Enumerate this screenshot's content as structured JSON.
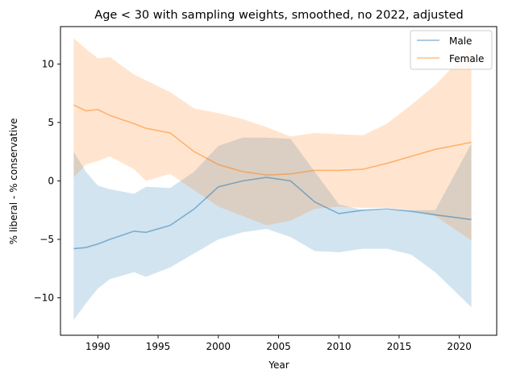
{
  "chart_data": {
    "type": "line",
    "title": "Age < 30 with sampling weights, smoothed, no 2022, adjusted",
    "xlabel": "Year",
    "ylabel": "% liberal - % conservative",
    "xlim": [
      1986.9,
      2023.1
    ],
    "ylim": [
      -13.2,
      13.2
    ],
    "x_ticks": [
      1990,
      1995,
      2000,
      2005,
      2010,
      2015,
      2020
    ],
    "y_ticks": [
      -10,
      -5,
      0,
      5,
      10
    ],
    "grid": false,
    "legend_position": "top-right",
    "x": [
      1988,
      1989,
      1990,
      1991,
      1993,
      1994,
      1996,
      1998,
      2000,
      2002,
      2004,
      2006,
      2008,
      2010,
      2012,
      2014,
      2016,
      2018,
      2021
    ],
    "series": [
      {
        "name": "Male",
        "color": "#1f77b4",
        "values": [
          -5.8,
          -5.7,
          -5.4,
          -5.0,
          -4.3,
          -4.4,
          -3.8,
          -2.4,
          -0.5,
          0.0,
          0.3,
          0.0,
          -1.8,
          -2.8,
          -2.5,
          -2.4,
          -2.6,
          -2.9,
          -3.3
        ],
        "lower": [
          -11.9,
          -10.5,
          -9.2,
          -8.4,
          -7.8,
          -8.2,
          -7.4,
          -6.2,
          -5.0,
          -4.4,
          -4.1,
          -4.8,
          -6.0,
          -6.1,
          -5.8,
          -5.8,
          -6.3,
          -7.8,
          -10.8
        ],
        "upper": [
          2.5,
          0.8,
          -0.4,
          -0.7,
          -1.1,
          -0.5,
          -0.6,
          0.8,
          3.0,
          3.7,
          3.7,
          3.6,
          0.8,
          -2.0,
          -2.5,
          -2.5,
          -2.5,
          -2.5,
          3.2
        ]
      },
      {
        "name": "Female",
        "color": "#ff7f0e",
        "values": [
          6.5,
          6.0,
          6.1,
          5.6,
          4.9,
          4.5,
          4.1,
          2.5,
          1.4,
          0.8,
          0.5,
          0.6,
          0.9,
          0.9,
          1.0,
          1.5,
          2.1,
          2.7,
          3.3
        ],
        "lower": [
          0.3,
          1.4,
          1.7,
          2.1,
          1.0,
          0.0,
          0.6,
          -0.8,
          -2.2,
          -3.0,
          -3.8,
          -3.4,
          -2.4,
          -2.2,
          -2.3,
          -2.3,
          -2.5,
          -3.0,
          -5.1
        ],
        "upper": [
          12.2,
          11.3,
          10.5,
          10.6,
          9.1,
          8.6,
          7.6,
          6.2,
          5.8,
          5.3,
          4.6,
          3.8,
          4.1,
          4.0,
          3.9,
          4.9,
          6.5,
          8.2,
          11.4
        ]
      }
    ]
  }
}
